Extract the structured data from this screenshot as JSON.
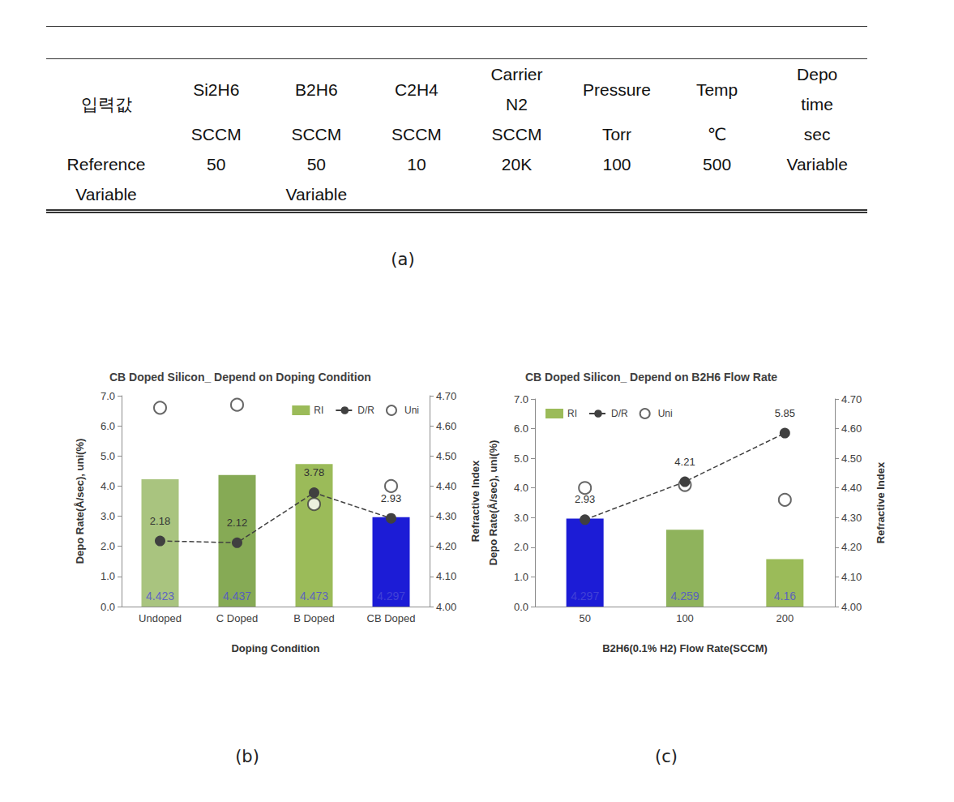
{
  "panel_labels": [
    "(a)",
    "(b)",
    "(c)"
  ],
  "table": {
    "header": {
      "title": "입력값",
      "columns": [
        {
          "name": "Si2H6",
          "unit": "SCCM"
        },
        {
          "name": "B2H6",
          "unit": "SCCM"
        },
        {
          "name": "C2H4",
          "unit": "SCCM"
        },
        {
          "name": "Carrier N2",
          "unit": "SCCM"
        },
        {
          "name": "Pressure",
          "unit": "Torr"
        },
        {
          "name": "Temp",
          "unit": "℃"
        },
        {
          "name": "Depo time",
          "unit": "sec"
        }
      ]
    },
    "rows": [
      {
        "label": "Reference",
        "cells": [
          50,
          50,
          10,
          "20K",
          100,
          500,
          "Variable"
        ]
      },
      {
        "label": "Variable",
        "cells": [
          null,
          "Variable",
          null,
          null,
          null,
          null,
          null
        ]
      }
    ]
  },
  "chart_data": [
    {
      "type": "bar",
      "title": "CB Doped Silicon_ Depend on Doping Condition",
      "xlabel": "Doping Condition",
      "ylabel": "Depo Rate(Å/sec), uni(%)",
      "y2label": "Refractive Index",
      "categories": [
        "Undoped",
        "C Doped",
        "B Doped",
        "CB Doped"
      ],
      "ylim": [
        0,
        7
      ],
      "yticks": [
        {
          "value": 0,
          "label": "0.0"
        },
        {
          "value": 1,
          "label": "1.0"
        },
        {
          "value": 2,
          "label": "2.0"
        },
        {
          "value": 3,
          "label": "3.0"
        },
        {
          "value": 4,
          "label": "4.0"
        },
        {
          "value": 5,
          "label": "5.0"
        },
        {
          "value": 6,
          "label": "6.0"
        },
        {
          "value": 7,
          "label": "7.0"
        }
      ],
      "y2lim": [
        4,
        4.7
      ],
      "y2ticks": [
        {
          "value": 4,
          "label": "4.00"
        },
        {
          "value": 4.1,
          "label": "4.10"
        },
        {
          "value": 4.2,
          "label": "4.20"
        },
        {
          "value": 4.3,
          "label": "4.30"
        },
        {
          "value": 4.4,
          "label": "4.40"
        },
        {
          "value": 4.5,
          "label": "4.50"
        },
        {
          "value": 4.6,
          "label": "4.60"
        },
        {
          "value": 4.7,
          "label": "4.70"
        }
      ],
      "grid": false,
      "legend": "upper right",
      "series": [
        {
          "name": "RI",
          "type": "bar",
          "axis": "y2",
          "color": "#9bbb59",
          "colors": [
            "#a9c47f",
            "#86aa55",
            "#9bbb59",
            "#1c1cd6"
          ],
          "values": [
            4.423,
            4.437,
            4.473,
            4.297
          ],
          "data_labels": true
        },
        {
          "name": "D/R",
          "type": "line",
          "color": "#404040",
          "line_style": "dashed",
          "marker": "circle",
          "values": [
            2.18,
            2.12,
            3.78,
            2.93
          ],
          "data_labels": true
        },
        {
          "name": "Uni",
          "type": "scatter",
          "color": "#404040",
          "marker": "open circle",
          "values": [
            6.6,
            6.7,
            3.4,
            4.0
          ]
        }
      ]
    },
    {
      "type": "bar",
      "title": "CB Doped Silicon_ Depend on B2H6 Flow Rate",
      "xlabel": "B2H6(0.1% H2) Flow Rate(SCCM)",
      "ylabel": "Depo Rate(Å/sec), uni(%)",
      "y2label": "Refractive Index",
      "categories": [
        "50",
        "100",
        "200"
      ],
      "ylim": [
        0,
        7
      ],
      "yticks": [
        {
          "value": 0,
          "label": "0.0"
        },
        {
          "value": 1,
          "label": "1.0"
        },
        {
          "value": 2,
          "label": "2.0"
        },
        {
          "value": 3,
          "label": "3.0"
        },
        {
          "value": 4,
          "label": "4.0"
        },
        {
          "value": 5,
          "label": "5.0"
        },
        {
          "value": 6,
          "label": "6.0"
        },
        {
          "value": 7,
          "label": "7.0"
        }
      ],
      "y2lim": [
        4,
        4.7
      ],
      "y2ticks": [
        {
          "value": 4,
          "label": "4.00"
        },
        {
          "value": 4.1,
          "label": "4.10"
        },
        {
          "value": 4.2,
          "label": "4.20"
        },
        {
          "value": 4.3,
          "label": "4.30"
        },
        {
          "value": 4.4,
          "label": "4.40"
        },
        {
          "value": 4.5,
          "label": "4.50"
        },
        {
          "value": 4.6,
          "label": "4.60"
        },
        {
          "value": 4.7,
          "label": "4.70"
        }
      ],
      "grid": false,
      "legend": "upper left",
      "series": [
        {
          "name": "RI",
          "type": "bar",
          "axis": "y2",
          "color": "#9bbb59",
          "colors": [
            "#1c1cd6",
            "#8fb35c",
            "#9bbb59"
          ],
          "values": [
            4.297,
            4.259,
            4.16
          ],
          "data_labels": true
        },
        {
          "name": "D/R",
          "type": "line",
          "color": "#404040",
          "line_style": "dashed",
          "marker": "circle",
          "values": [
            2.93,
            4.21,
            5.85
          ],
          "data_labels": true
        },
        {
          "name": "Uni",
          "type": "scatter",
          "color": "#404040",
          "marker": "open circle",
          "values": [
            4.0,
            4.1,
            3.6
          ]
        }
      ]
    }
  ]
}
